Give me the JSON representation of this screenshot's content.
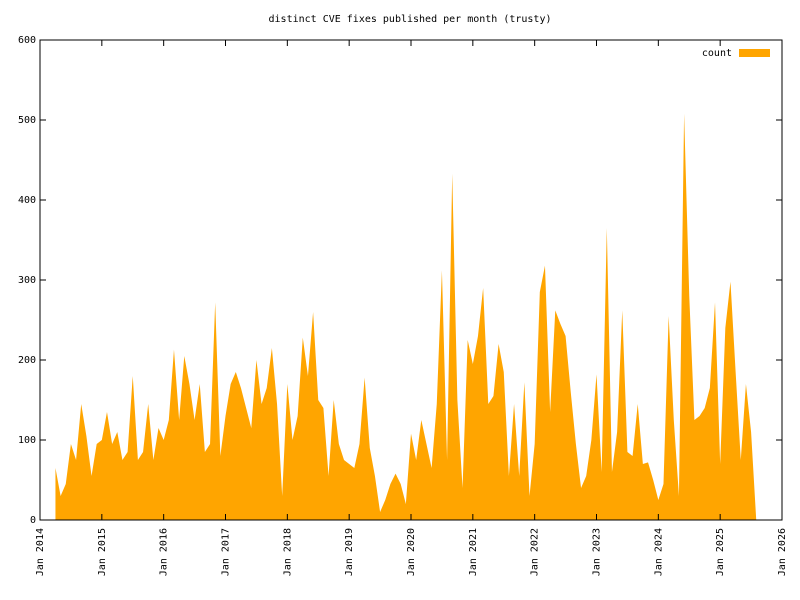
{
  "chart_data": {
    "type": "area",
    "title": "distinct CVE fixes published per month (trusty)",
    "x": [
      "2014-04",
      "2014-05",
      "2014-06",
      "2014-07",
      "2014-08",
      "2014-09",
      "2014-10",
      "2014-11",
      "2014-12",
      "2015-01",
      "2015-02",
      "2015-03",
      "2015-04",
      "2015-05",
      "2015-06",
      "2015-07",
      "2015-08",
      "2015-09",
      "2015-10",
      "2015-11",
      "2015-12",
      "2016-01",
      "2016-02",
      "2016-03",
      "2016-04",
      "2016-05",
      "2016-06",
      "2016-07",
      "2016-08",
      "2016-09",
      "2016-10",
      "2016-11",
      "2016-12",
      "2017-01",
      "2017-02",
      "2017-03",
      "2017-04",
      "2017-05",
      "2017-06",
      "2017-07",
      "2017-08",
      "2017-09",
      "2017-10",
      "2017-11",
      "2017-12",
      "2018-01",
      "2018-02",
      "2018-03",
      "2018-04",
      "2018-05",
      "2018-06",
      "2018-07",
      "2018-08",
      "2018-09",
      "2018-10",
      "2018-11",
      "2018-12",
      "2019-01",
      "2019-02",
      "2019-03",
      "2019-04",
      "2019-05",
      "2019-06",
      "2019-07",
      "2019-08",
      "2019-09",
      "2019-10",
      "2019-11",
      "2019-12",
      "2020-01",
      "2020-02",
      "2020-03",
      "2020-04",
      "2020-05",
      "2020-06",
      "2020-07",
      "2020-08",
      "2020-09",
      "2020-10",
      "2020-11",
      "2020-12",
      "2021-01",
      "2021-02",
      "2021-03",
      "2021-04",
      "2021-05",
      "2021-06",
      "2021-07",
      "2021-08",
      "2021-09",
      "2021-10",
      "2021-11",
      "2021-12",
      "2022-01",
      "2022-02",
      "2022-03",
      "2022-04",
      "2022-05",
      "2022-06",
      "2022-07",
      "2022-08",
      "2022-09",
      "2022-10",
      "2022-11",
      "2022-12",
      "2023-01",
      "2023-02",
      "2023-03",
      "2023-04",
      "2023-05",
      "2023-06",
      "2023-07",
      "2023-08",
      "2023-09",
      "2023-10",
      "2023-11",
      "2023-12",
      "2024-01",
      "2024-02",
      "2024-03",
      "2024-04",
      "2024-05",
      "2024-06",
      "2024-07",
      "2024-08",
      "2024-09",
      "2024-10",
      "2024-11",
      "2024-12",
      "2025-01",
      "2025-02",
      "2025-03",
      "2025-04",
      "2025-05",
      "2025-06",
      "2025-07",
      "2025-08"
    ],
    "series": [
      {
        "name": "count",
        "color": "#ffa500",
        "values": [
          65,
          30,
          45,
          95,
          75,
          145,
          105,
          55,
          95,
          100,
          135,
          95,
          110,
          75,
          85,
          180,
          75,
          85,
          145,
          75,
          115,
          100,
          125,
          213,
          125,
          205,
          170,
          125,
          170,
          85,
          95,
          272,
          80,
          130,
          170,
          185,
          165,
          140,
          115,
          200,
          145,
          165,
          215,
          145,
          30,
          170,
          100,
          130,
          228,
          180,
          260,
          150,
          140,
          55,
          150,
          95,
          75,
          70,
          65,
          95,
          178,
          90,
          55,
          10,
          25,
          45,
          58,
          45,
          20,
          108,
          75,
          125,
          95,
          65,
          145,
          312,
          75,
          433,
          150,
          40,
          225,
          195,
          230,
          290,
          145,
          155,
          220,
          185,
          55,
          145,
          55,
          172,
          30,
          95,
          285,
          318,
          135,
          262,
          245,
          230,
          160,
          95,
          40,
          55,
          100,
          182,
          60,
          365,
          60,
          110,
          262,
          85,
          80,
          145,
          70,
          72,
          50,
          25,
          45,
          255,
          125,
          30,
          508,
          280,
          125,
          130,
          140,
          165,
          272,
          70,
          240,
          298,
          185,
          75,
          170,
          110,
          0
        ]
      }
    ],
    "xlim": [
      "2014-01",
      "2026-01"
    ],
    "xticks": [
      {
        "value": "2014-01",
        "label": "Jan 2014"
      },
      {
        "value": "2015-01",
        "label": "Jan 2015"
      },
      {
        "value": "2016-01",
        "label": "Jan 2016"
      },
      {
        "value": "2017-01",
        "label": "Jan 2017"
      },
      {
        "value": "2018-01",
        "label": "Jan 2018"
      },
      {
        "value": "2019-01",
        "label": "Jan 2019"
      },
      {
        "value": "2020-01",
        "label": "Jan 2020"
      },
      {
        "value": "2021-01",
        "label": "Jan 2021"
      },
      {
        "value": "2022-01",
        "label": "Jan 2022"
      },
      {
        "value": "2023-01",
        "label": "Jan 2023"
      },
      {
        "value": "2024-01",
        "label": "Jan 2024"
      },
      {
        "value": "2025-01",
        "label": "Jan 2025"
      },
      {
        "value": "2026-01",
        "label": "Jan 2026"
      }
    ],
    "ylim": [
      0,
      600
    ],
    "yticks": [
      0,
      100,
      200,
      300,
      400,
      500,
      600
    ],
    "legend": "top-right"
  }
}
